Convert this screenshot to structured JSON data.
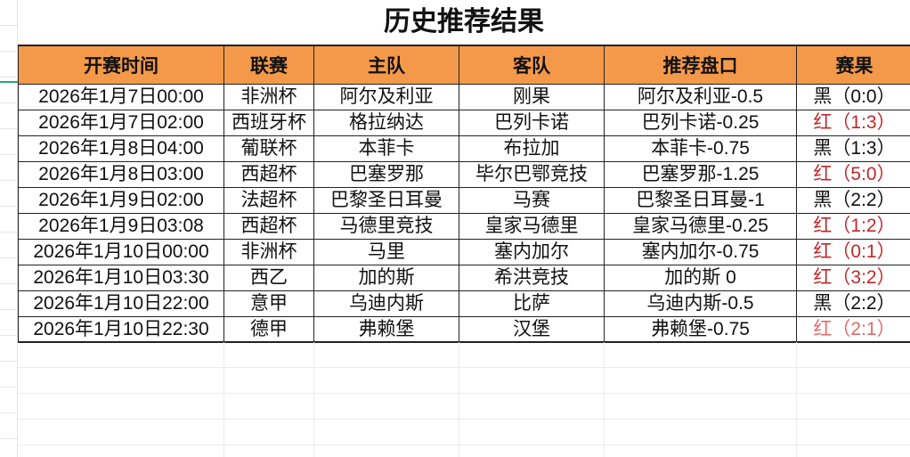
{
  "title": "历史推荐结果",
  "colors": {
    "header_bg": "#f4994a",
    "red": "#c0282a",
    "light_red": "#e26a6a",
    "black": "#111111"
  },
  "columns": [
    "开赛时间",
    "联赛",
    "主队",
    "客队",
    "推荐盘口",
    "赛果"
  ],
  "rows": [
    {
      "time": "2026年1月7日00:00",
      "league": "非洲杯",
      "home": "阿尔及利亚",
      "away": "刚果",
      "pick": "阿尔及利亚-0.5",
      "result": "黑（0:0）",
      "result_color": "black"
    },
    {
      "time": "2026年1月7日02:00",
      "league": "西班牙杯",
      "home": "格拉纳达",
      "away": "巴列卡诺",
      "pick": "巴列卡诺-0.25",
      "result": "红（1:3）",
      "result_color": "red"
    },
    {
      "time": "2026年1月8日04:00",
      "league": "葡联杯",
      "home": "本菲卡",
      "away": "布拉加",
      "pick": "本菲卡-0.75",
      "result": "黑（1:3）",
      "result_color": "black"
    },
    {
      "time": "2026年1月8日03:00",
      "league": "西超杯",
      "home": "巴塞罗那",
      "away": "毕尔巴鄂竞技",
      "pick": "巴塞罗那-1.25",
      "result": "红（5:0）",
      "result_color": "red"
    },
    {
      "time": "2026年1月9日02:00",
      "league": "法超杯",
      "home": "巴黎圣日耳曼",
      "away": "马赛",
      "pick": "巴黎圣日耳曼-1",
      "result": "黑（2:2）",
      "result_color": "black"
    },
    {
      "time": "2026年1月9日03:08",
      "league": "西超杯",
      "home": "马德里竞技",
      "away": "皇家马德里",
      "pick": "皇家马德里-0.25",
      "result": "红（1:2）",
      "result_color": "red"
    },
    {
      "time": "2026年1月10日00:00",
      "league": "非洲杯",
      "home": "马里",
      "away": "塞内加尔",
      "pick": "塞内加尔-0.75",
      "result": "红（0:1）",
      "result_color": "red"
    },
    {
      "time": "2026年1月10日03:30",
      "league": "西乙",
      "home": "加的斯",
      "away": "希洪竞技",
      "pick": "加的斯 0",
      "result": "红（3:2）",
      "result_color": "red"
    },
    {
      "time": "2026年1月10日22:00",
      "league": "意甲",
      "home": "乌迪内斯",
      "away": "比萨",
      "pick": "乌迪内斯-0.5",
      "result": "黑（2:2）",
      "result_color": "black"
    },
    {
      "time": "2026年1月10日22:30",
      "league": "德甲",
      "home": "弗赖堡",
      "away": "汉堡",
      "pick": "弗赖堡-0.75",
      "result": "红（2:1）",
      "result_color": "light_red"
    }
  ]
}
